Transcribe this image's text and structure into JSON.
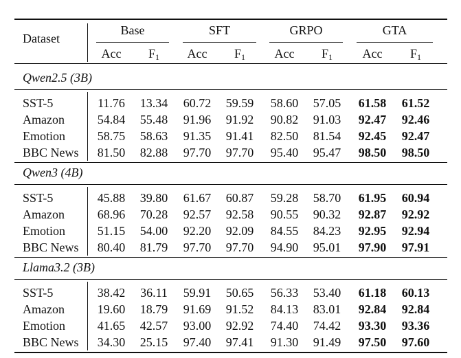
{
  "header": {
    "dataset_label": "Dataset",
    "groups": [
      "Base",
      "SFT",
      "GRPO",
      "GTA"
    ],
    "sub_labels": [
      "Acc",
      "F",
      "Acc",
      "F",
      "Acc",
      "F",
      "Acc",
      "F"
    ],
    "f_subscript": "1"
  },
  "sections": [
    {
      "title": "Qwen2.5 (3B)",
      "rows": [
        {
          "dataset": "SST-5",
          "values": [
            "11.76",
            "13.34",
            "60.72",
            "59.59",
            "58.60",
            "57.05",
            "61.58",
            "61.52"
          ]
        },
        {
          "dataset": "Amazon",
          "values": [
            "54.84",
            "55.48",
            "91.96",
            "91.92",
            "90.82",
            "91.03",
            "92.47",
            "92.46"
          ]
        },
        {
          "dataset": "Emotion",
          "values": [
            "58.75",
            "58.63",
            "91.35",
            "91.41",
            "82.50",
            "81.54",
            "92.45",
            "92.47"
          ]
        },
        {
          "dataset": "BBC News",
          "values": [
            "81.50",
            "82.88",
            "97.70",
            "97.70",
            "95.40",
            "95.47",
            "98.50",
            "98.50"
          ]
        }
      ]
    },
    {
      "title": "Qwen3 (4B)",
      "rows": [
        {
          "dataset": "SST-5",
          "values": [
            "45.88",
            "39.80",
            "61.67",
            "60.87",
            "59.28",
            "58.70",
            "61.95",
            "60.94"
          ]
        },
        {
          "dataset": "Amazon",
          "values": [
            "68.96",
            "70.28",
            "92.57",
            "92.58",
            "90.55",
            "90.32",
            "92.87",
            "92.92"
          ]
        },
        {
          "dataset": "Emotion",
          "values": [
            "51.15",
            "54.00",
            "92.20",
            "92.09",
            "84.55",
            "84.23",
            "92.95",
            "92.94"
          ]
        },
        {
          "dataset": "BBC News",
          "values": [
            "80.40",
            "81.79",
            "97.70",
            "97.70",
            "94.90",
            "95.01",
            "97.90",
            "97.91"
          ]
        }
      ]
    },
    {
      "title": "Llama3.2 (3B)",
      "rows": [
        {
          "dataset": "SST-5",
          "values": [
            "38.42",
            "36.11",
            "59.91",
            "50.65",
            "56.33",
            "53.40",
            "61.18",
            "60.13"
          ]
        },
        {
          "dataset": "Amazon",
          "values": [
            "19.60",
            "18.79",
            "91.69",
            "91.52",
            "84.13",
            "83.01",
            "92.84",
            "92.84"
          ]
        },
        {
          "dataset": "Emotion",
          "values": [
            "41.65",
            "42.57",
            "93.00",
            "92.92",
            "74.40",
            "74.42",
            "93.30",
            "93.36"
          ]
        },
        {
          "dataset": "BBC News",
          "values": [
            "34.30",
            "25.15",
            "97.40",
            "97.41",
            "91.30",
            "91.49",
            "97.50",
            "97.60"
          ]
        }
      ]
    }
  ],
  "bold_columns": [
    6,
    7
  ]
}
